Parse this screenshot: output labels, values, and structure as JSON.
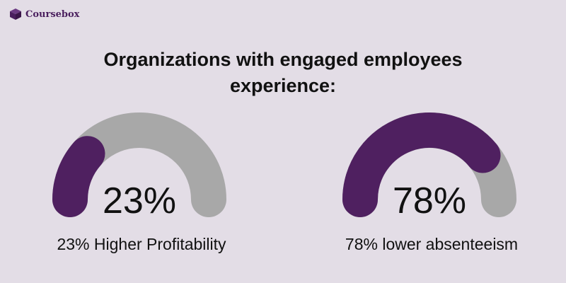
{
  "brand": {
    "name": "Coursebox",
    "icon": "box-icon",
    "color": "#4a1f5e"
  },
  "headline": {
    "line1": "Organizations with engaged employees",
    "line2": "experience:"
  },
  "colors": {
    "background": "#e3dde6",
    "track": "#a8a8a8",
    "fill": "#4f2060"
  },
  "chart_data": [
    {
      "type": "gauge",
      "value": 23,
      "max": 100,
      "value_label": "23%",
      "caption": "23% Higher Profitability"
    },
    {
      "type": "gauge",
      "value": 78,
      "max": 100,
      "value_label": "78%",
      "caption": "78% lower absenteeism"
    }
  ]
}
